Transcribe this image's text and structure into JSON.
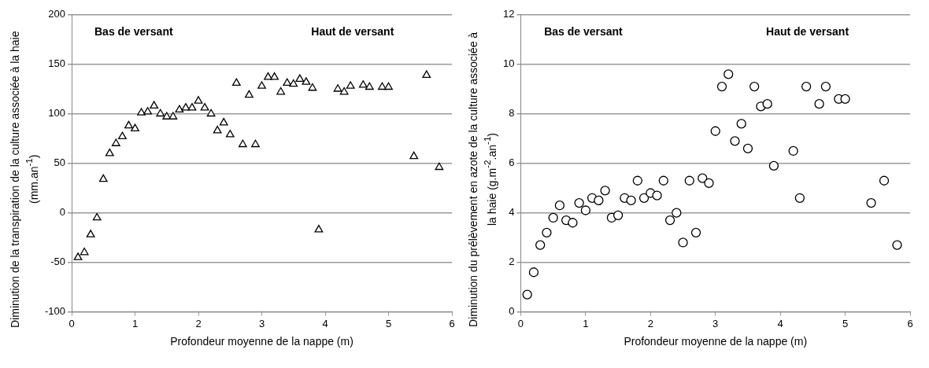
{
  "chart_data": [
    {
      "type": "scatter",
      "xlabel": "Profondeur moyenne de la nappe (m)",
      "ylabel": "Diminution de la transpiration de la culture associée à la haie (mm.an$^{-1}$)",
      "annotations": [
        "Bas de versant",
        "Haut de versant"
      ],
      "series": [
        {
          "color": "#000000",
          "x": [
            0.1,
            0.2,
            0.3,
            0.4,
            0.5,
            0.6,
            0.7,
            0.8,
            0.9,
            1.0,
            1.1,
            1.2,
            1.3,
            1.4,
            1.5,
            1.6,
            1.7,
            1.8,
            1.9,
            2.0,
            2.1,
            2.2,
            2.3,
            2.4,
            2.5,
            2.6,
            2.7,
            2.8,
            2.9,
            3.0,
            3.1,
            3.2,
            3.3,
            3.4,
            3.5,
            3.6,
            3.7,
            3.8,
            3.9,
            4.2,
            4.3,
            4.4,
            4.6,
            4.7,
            4.9,
            5.0,
            5.4,
            5.6,
            5.8
          ],
          "values": [
            -45,
            -40,
            -22,
            -5,
            34,
            60,
            70,
            77,
            88,
            85,
            101,
            102,
            108,
            100,
            97,
            97,
            104,
            106,
            106,
            113,
            106,
            100,
            83,
            91,
            79,
            131,
            69,
            119,
            69,
            128,
            137,
            137,
            122,
            131,
            130,
            135,
            132,
            126,
            -17,
            125,
            122,
            128,
            129,
            127,
            127,
            127,
            57,
            139,
            46
          ]
        }
      ],
      "xlim": [
        0,
        6
      ],
      "xticks": [
        0,
        1,
        2,
        3,
        4,
        5,
        6
      ],
      "ylim": [
        -100,
        200
      ],
      "yticks": [
        -100,
        -50,
        0,
        50,
        100,
        150,
        200
      ],
      "grid": "y",
      "marker": "triangle",
      "legend": false
    },
    {
      "type": "scatter",
      "xlabel": "Profondeur moyenne de la nappe (m)",
      "ylabel": "Diminution du prélèvement en azote de la culture associée à la haie (g.m$^{-2}$.an$^{-1}$)",
      "annotations": [
        "Bas de versant",
        "Haut de versant"
      ],
      "series": [
        {
          "color": "#000000",
          "x": [
            0.1,
            0.2,
            0.3,
            0.4,
            0.5,
            0.6,
            0.7,
            0.8,
            0.9,
            1.0,
            1.1,
            1.2,
            1.3,
            1.4,
            1.5,
            1.6,
            1.7,
            1.8,
            1.9,
            2.0,
            2.1,
            2.2,
            2.3,
            2.4,
            2.5,
            2.6,
            2.7,
            2.8,
            2.9,
            3.0,
            3.1,
            3.2,
            3.3,
            3.4,
            3.5,
            3.6,
            3.7,
            3.8,
            3.9,
            4.2,
            4.3,
            4.4,
            4.6,
            4.7,
            4.9,
            5.0,
            5.4,
            5.6,
            5.8
          ],
          "values": [
            0.7,
            1.6,
            2.7,
            3.2,
            3.8,
            4.3,
            3.7,
            3.6,
            4.4,
            4.1,
            4.6,
            4.5,
            4.9,
            3.8,
            3.9,
            4.6,
            4.5,
            5.3,
            4.6,
            4.8,
            4.7,
            5.3,
            3.7,
            4.0,
            2.8,
            5.3,
            3.2,
            5.4,
            5.2,
            7.3,
            9.1,
            9.6,
            6.9,
            7.6,
            6.6,
            9.1,
            8.3,
            8.4,
            5.9,
            6.5,
            4.6,
            9.1,
            8.4,
            9.1,
            8.6,
            8.6,
            4.4,
            5.3,
            2.7
          ]
        }
      ],
      "xlim": [
        0,
        6
      ],
      "xticks": [
        0,
        1,
        2,
        3,
        4,
        5,
        6
      ],
      "ylim": [
        0,
        12
      ],
      "yticks": [
        0,
        2,
        4,
        6,
        8,
        10,
        12
      ],
      "grid": "y",
      "marker": "circle",
      "legend": false
    }
  ]
}
